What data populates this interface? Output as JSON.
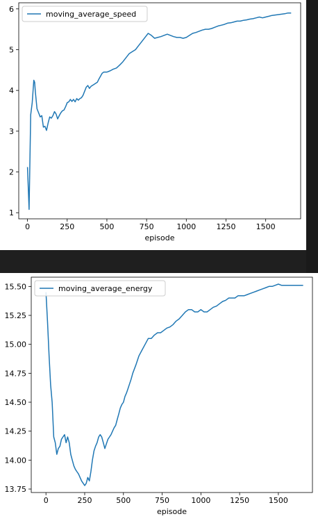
{
  "chart_data": [
    {
      "type": "line",
      "title": "",
      "xlabel": "episode",
      "ylabel": "",
      "xlim": [
        -55,
        1720
      ],
      "ylim": [
        0.85,
        6.15
      ],
      "xticks": [
        0,
        250,
        500,
        750,
        1000,
        1250,
        1500
      ],
      "yticks": [
        1,
        2,
        3,
        4,
        5,
        6
      ],
      "xtick_labels": [
        "0",
        "250",
        "500",
        "750",
        "1000",
        "1250",
        "1500"
      ],
      "ytick_labels": [
        "1",
        "2",
        "3",
        "4",
        "5",
        "6"
      ],
      "legend_position": "upper-left",
      "grid": false,
      "series": [
        {
          "name": "moving_average_speed",
          "color": "#1f77b4",
          "x": [
            0,
            10,
            20,
            30,
            40,
            45,
            50,
            60,
            70,
            80,
            90,
            100,
            110,
            120,
            130,
            140,
            150,
            160,
            170,
            180,
            190,
            200,
            210,
            220,
            230,
            240,
            250,
            260,
            270,
            280,
            290,
            300,
            310,
            320,
            330,
            340,
            350,
            370,
            380,
            390,
            400,
            420,
            440,
            450,
            460,
            470,
            480,
            500,
            520,
            540,
            560,
            580,
            600,
            620,
            640,
            660,
            680,
            700,
            720,
            740,
            760,
            780,
            800,
            820,
            840,
            860,
            880,
            900,
            920,
            940,
            960,
            980,
            1000,
            1020,
            1040,
            1060,
            1080,
            1100,
            1120,
            1140,
            1160,
            1180,
            1200,
            1220,
            1240,
            1260,
            1280,
            1300,
            1320,
            1340,
            1360,
            1380,
            1400,
            1420,
            1440,
            1460,
            1480,
            1500,
            1520,
            1540,
            1560,
            1580,
            1600,
            1620,
            1640,
            1660
          ],
          "y": [
            2.12,
            1.08,
            3.4,
            3.7,
            4.25,
            4.2,
            3.95,
            3.55,
            3.45,
            3.35,
            3.38,
            3.1,
            3.12,
            3.02,
            3.2,
            3.35,
            3.32,
            3.38,
            3.48,
            3.42,
            3.3,
            3.38,
            3.45,
            3.5,
            3.52,
            3.6,
            3.7,
            3.72,
            3.78,
            3.73,
            3.78,
            3.72,
            3.8,
            3.76,
            3.8,
            3.82,
            3.88,
            4.08,
            4.12,
            4.05,
            4.1,
            4.15,
            4.2,
            4.28,
            4.35,
            4.42,
            4.45,
            4.45,
            4.48,
            4.52,
            4.55,
            4.62,
            4.7,
            4.8,
            4.9,
            4.95,
            5.0,
            5.1,
            5.2,
            5.3,
            5.4,
            5.35,
            5.28,
            5.3,
            5.32,
            5.35,
            5.38,
            5.35,
            5.32,
            5.3,
            5.3,
            5.28,
            5.3,
            5.35,
            5.4,
            5.42,
            5.45,
            5.48,
            5.5,
            5.5,
            5.52,
            5.55,
            5.58,
            5.6,
            5.62,
            5.65,
            5.66,
            5.68,
            5.7,
            5.7,
            5.72,
            5.73,
            5.75,
            5.76,
            5.78,
            5.8,
            5.78,
            5.8,
            5.82,
            5.84,
            5.85,
            5.86,
            5.87,
            5.88,
            5.9,
            5.9
          ]
        }
      ]
    },
    {
      "type": "line",
      "title": "",
      "xlabel": "episode",
      "ylabel": "",
      "xlim": [
        -95,
        1720
      ],
      "ylim": [
        13.72,
        15.58
      ],
      "xticks": [
        0,
        250,
        500,
        750,
        1000,
        1250,
        1500
      ],
      "yticks": [
        13.75,
        14.0,
        14.25,
        14.5,
        14.75,
        15.0,
        15.25,
        15.5
      ],
      "xtick_labels": [
        "0",
        "250",
        "500",
        "750",
        "1000",
        "1250",
        "1500"
      ],
      "ytick_labels": [
        "13.75",
        "14.00",
        "14.25",
        "14.50",
        "14.75",
        "15.00",
        "15.25",
        "15.50"
      ],
      "legend_position": "upper-left",
      "grid": false,
      "series": [
        {
          "name": "moving_average_energy",
          "color": "#1f77b4",
          "x": [
            0,
            10,
            20,
            30,
            40,
            50,
            60,
            70,
            80,
            90,
            100,
            110,
            120,
            130,
            140,
            150,
            160,
            170,
            180,
            190,
            200,
            210,
            220,
            230,
            240,
            250,
            260,
            270,
            280,
            290,
            300,
            310,
            320,
            330,
            340,
            350,
            360,
            370,
            380,
            390,
            400,
            410,
            420,
            430,
            440,
            450,
            460,
            470,
            480,
            490,
            500,
            510,
            520,
            530,
            540,
            550,
            560,
            580,
            600,
            620,
            640,
            660,
            680,
            700,
            720,
            740,
            760,
            780,
            800,
            820,
            840,
            860,
            880,
            900,
            920,
            940,
            960,
            980,
            1000,
            1020,
            1040,
            1060,
            1080,
            1100,
            1120,
            1140,
            1160,
            1180,
            1200,
            1220,
            1240,
            1260,
            1280,
            1300,
            1320,
            1340,
            1360,
            1380,
            1400,
            1420,
            1440,
            1460,
            1480,
            1500,
            1520,
            1540,
            1560,
            1580,
            1600,
            1620,
            1640,
            1660
          ],
          "y": [
            15.45,
            15.2,
            14.9,
            14.65,
            14.5,
            14.2,
            14.15,
            14.05,
            14.1,
            14.12,
            14.18,
            14.2,
            14.22,
            14.15,
            14.2,
            14.15,
            14.05,
            14.0,
            13.95,
            13.92,
            13.9,
            13.88,
            13.85,
            13.82,
            13.8,
            13.78,
            13.8,
            13.85,
            13.82,
            13.9,
            14.0,
            14.08,
            14.12,
            14.15,
            14.2,
            14.22,
            14.2,
            14.15,
            14.1,
            14.14,
            14.18,
            14.2,
            14.22,
            14.25,
            14.28,
            14.3,
            14.35,
            14.4,
            14.45,
            14.48,
            14.5,
            14.55,
            14.58,
            14.62,
            14.66,
            14.7,
            14.75,
            14.82,
            14.9,
            14.95,
            15.0,
            15.05,
            15.05,
            15.08,
            15.1,
            15.1,
            15.12,
            15.14,
            15.15,
            15.17,
            15.2,
            15.22,
            15.25,
            15.28,
            15.3,
            15.3,
            15.28,
            15.28,
            15.3,
            15.28,
            15.28,
            15.3,
            15.32,
            15.33,
            15.35,
            15.37,
            15.38,
            15.4,
            15.4,
            15.4,
            15.42,
            15.42,
            15.42,
            15.43,
            15.44,
            15.45,
            15.46,
            15.47,
            15.48,
            15.49,
            15.5,
            15.5,
            15.51,
            15.52,
            15.51,
            15.51,
            15.51,
            15.51,
            15.51,
            15.51,
            15.51,
            15.51
          ]
        }
      ]
    }
  ]
}
